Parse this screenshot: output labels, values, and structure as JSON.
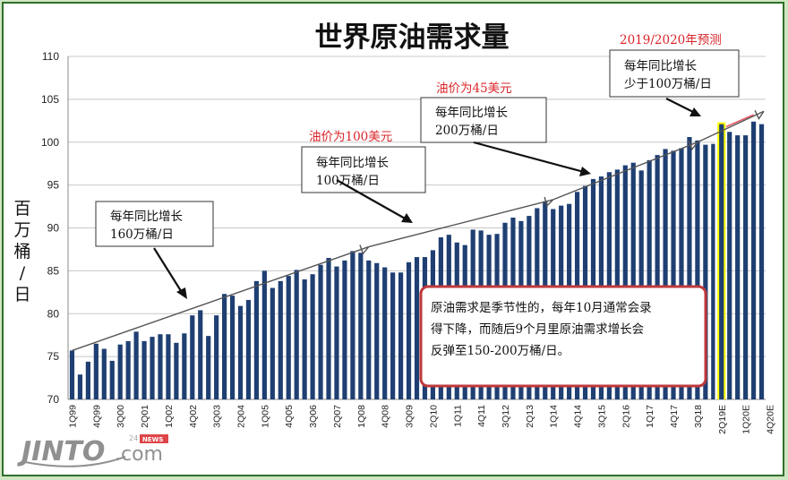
{
  "chart_data": {
    "type": "bar",
    "title": "世界原油需求量",
    "ylabel": "百万桶/日",
    "xlabel": "",
    "ylim": [
      70,
      110
    ],
    "yticks": [
      70,
      75,
      80,
      85,
      90,
      95,
      100,
      105,
      110
    ],
    "grid": "horizontal",
    "x_tick_labels": [
      "1Q99",
      "4Q99",
      "3Q00",
      "2Q01",
      "1Q02",
      "4Q02",
      "3Q03",
      "2Q04",
      "1Q05",
      "4Q05",
      "3Q06",
      "2Q07",
      "1Q08",
      "4Q08",
      "3Q09",
      "2Q10",
      "1Q11",
      "4Q11",
      "3Q12",
      "2Q13",
      "1Q14",
      "4Q14",
      "3Q15",
      "2Q16",
      "1Q17",
      "4Q17",
      "3Q18",
      "2Q19E",
      "1Q20E",
      "4Q20E"
    ],
    "values": [
      75.7,
      72.9,
      74.4,
      76.5,
      75.9,
      74.5,
      76.4,
      76.8,
      77.9,
      76.8,
      77.3,
      77.6,
      77.6,
      76.6,
      77.7,
      79.8,
      80.4,
      77.4,
      79.8,
      82.3,
      82.1,
      80.9,
      81.6,
      83.8,
      85.0,
      83.0,
      83.8,
      84.4,
      85.1,
      84.0,
      84.6,
      85.7,
      86.5,
      85.5,
      86.2,
      87.3,
      87.1,
      86.2,
      85.9,
      85.4,
      84.8,
      84.8,
      86.0,
      86.6,
      86.6,
      87.4,
      88.9,
      89.2,
      88.3,
      88.0,
      89.8,
      89.7,
      89.2,
      89.3,
      90.6,
      91.2,
      90.8,
      91.4,
      92.3,
      93.1,
      92.2,
      92.6,
      92.8,
      94.2,
      94.9,
      95.7,
      96.0,
      96.5,
      96.8,
      97.3,
      97.6,
      96.7,
      97.9,
      98.5,
      99.2,
      99.0,
      99.3,
      100.6,
      100.2,
      99.7,
      99.8,
      102.1,
      101.2,
      100.8,
      100.8,
      102.4,
      102.1
    ],
    "forecast_start_index": 81,
    "highlight_index": 81,
    "highlight_color": "#ffff00",
    "bar_color": "#1f3f73",
    "trend_segments": [
      {
        "from": [
          0,
          75.7
        ],
        "to": [
          37,
          87.8
        ]
      },
      {
        "from": [
          37,
          87.8
        ],
        "to": [
          60,
          93.3
        ]
      },
      {
        "from": [
          60,
          93.3
        ],
        "to": [
          78,
          100.0
        ]
      },
      {
        "from": [
          78,
          100.0
        ],
        "to": [
          86,
          103.6
        ]
      }
    ],
    "annotations": [
      {
        "lines": [
          "每年同比增长",
          "160万桶/日"
        ]
      },
      {
        "lines": [
          "每年同比增长",
          "100万桶/日"
        ],
        "tag": "油价为100美元"
      },
      {
        "lines": [
          "每年同比增长",
          "200万桶/日"
        ],
        "tag": "油价为45美元"
      },
      {
        "lines": [
          "每年同比增长",
          "少于100万桶/日"
        ],
        "tag": "2019/2020年预测"
      }
    ],
    "note_lines": [
      "原油需求是季节性的，每年10月通常会录",
      "得下降，而随后9个月里原油需求增长会",
      "反弹至150-200万桶/日。"
    ]
  },
  "logo": {
    "main": "JINTO",
    "suffix": ".com",
    "small": "24",
    "badge": "NEWS"
  },
  "colors": {
    "frame": "#2f6f2a",
    "background": "#cfe6c3",
    "red_text": "#d9252a",
    "note_border": "#c0393c"
  }
}
